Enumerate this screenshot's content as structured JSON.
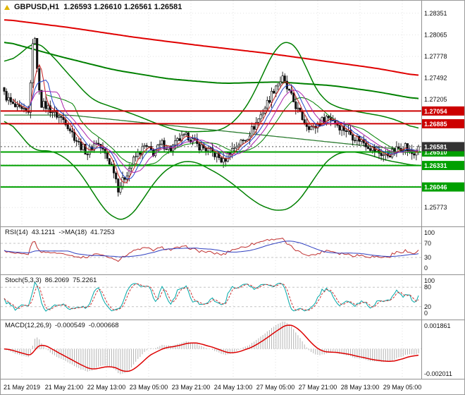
{
  "title": {
    "symbol_period": "GBPUSD,H1",
    "ohlc": "1.26593 1.26610 1.26561 1.26581"
  },
  "chart_data": {
    "type": "candlestick",
    "symbol": "GBPUSD",
    "timeframe": "H1",
    "current_ohlc": {
      "open": 1.26593,
      "high": 1.2661,
      "low": 1.26561,
      "close": 1.26581
    },
    "n_candles": 190,
    "price_range": [
      1.2556,
      1.2848
    ],
    "colors": {
      "candle": "#111111",
      "bull_fill": "#ffffff",
      "grid": "#e2e2e2",
      "separator": "#909090",
      "axis_text": "#111111"
    },
    "close_anchors": [
      [
        0,
        1.2728
      ],
      [
        4,
        1.2712
      ],
      [
        8,
        1.2705
      ],
      [
        11,
        1.2702
      ],
      [
        13,
        1.279
      ],
      [
        14,
        1.2806
      ],
      [
        15,
        1.2758
      ],
      [
        17,
        1.2715
      ],
      [
        20,
        1.271
      ],
      [
        24,
        1.27
      ],
      [
        28,
        1.2692
      ],
      [
        31,
        1.2676
      ],
      [
        34,
        1.2662
      ],
      [
        38,
        1.265
      ],
      [
        42,
        1.2665
      ],
      [
        46,
        1.2648
      ],
      [
        50,
        1.2628
      ],
      [
        52,
        1.2603
      ],
      [
        54,
        1.2612
      ],
      [
        57,
        1.263
      ],
      [
        60,
        1.2645
      ],
      [
        64,
        1.2658
      ],
      [
        68,
        1.265
      ],
      [
        72,
        1.2662
      ],
      [
        76,
        1.2655
      ],
      [
        80,
        1.2668
      ],
      [
        84,
        1.2672
      ],
      [
        88,
        1.266
      ],
      [
        92,
        1.2655
      ],
      [
        96,
        1.2648
      ],
      [
        100,
        1.2638
      ],
      [
        103,
        1.2652
      ],
      [
        106,
        1.266
      ],
      [
        110,
        1.2668
      ],
      [
        114,
        1.2685
      ],
      [
        118,
        1.2705
      ],
      [
        121,
        1.2722
      ],
      [
        124,
        1.274
      ],
      [
        127,
        1.2748
      ],
      [
        129,
        1.2735
      ],
      [
        132,
        1.2718
      ],
      [
        135,
        1.27
      ],
      [
        138,
        1.2688
      ],
      [
        141,
        1.2682
      ],
      [
        144,
        1.269
      ],
      [
        147,
        1.2698
      ],
      [
        150,
        1.2694
      ],
      [
        153,
        1.2685
      ],
      [
        156,
        1.268
      ],
      [
        159,
        1.2672
      ],
      [
        162,
        1.2668
      ],
      [
        165,
        1.2662
      ],
      [
        168,
        1.2655
      ],
      [
        171,
        1.265
      ],
      [
        174,
        1.2646
      ],
      [
        177,
        1.265
      ],
      [
        180,
        1.2656
      ],
      [
        183,
        1.266
      ],
      [
        185,
        1.265
      ],
      [
        187,
        1.2648
      ],
      [
        189,
        1.26581
      ]
    ],
    "overlays": {
      "trend_ma_red": {
        "color": "#e00000",
        "width": 2,
        "anchors": [
          [
            0,
            1.2827
          ],
          [
            30,
            1.2816
          ],
          [
            60,
            1.2803
          ],
          [
            90,
            1.2792
          ],
          [
            120,
            1.2782
          ],
          [
            150,
            1.277
          ],
          [
            170,
            1.2762
          ],
          [
            189,
            1.2752
          ]
        ]
      },
      "slow_ma_green": {
        "color": "#008000",
        "width": 2,
        "anchors": [
          [
            0,
            1.2798
          ],
          [
            25,
            1.2778
          ],
          [
            50,
            1.276
          ],
          [
            75,
            1.2748
          ],
          [
            100,
            1.2742
          ],
          [
            125,
            1.2744
          ],
          [
            150,
            1.2739
          ],
          [
            170,
            1.2731
          ],
          [
            189,
            1.2721
          ]
        ]
      },
      "bb_upper": {
        "color": "#008000",
        "width": 1.5,
        "anchors": [
          [
            0,
            1.2768
          ],
          [
            8,
            1.2782
          ],
          [
            14,
            1.28
          ],
          [
            20,
            1.2785
          ],
          [
            30,
            1.2752
          ],
          [
            40,
            1.272
          ],
          [
            50,
            1.271
          ],
          [
            60,
            1.27
          ],
          [
            70,
            1.2688
          ],
          [
            80,
            1.2678
          ],
          [
            90,
            1.2678
          ],
          [
            100,
            1.268
          ],
          [
            108,
            1.27
          ],
          [
            114,
            1.2728
          ],
          [
            120,
            1.2768
          ],
          [
            125,
            1.2795
          ],
          [
            130,
            1.28
          ],
          [
            135,
            1.2785
          ],
          [
            140,
            1.2745
          ],
          [
            145,
            1.2722
          ],
          [
            150,
            1.2712
          ],
          [
            158,
            1.2706
          ],
          [
            166,
            1.2702
          ],
          [
            174,
            1.2698
          ],
          [
            182,
            1.269
          ],
          [
            189,
            1.268
          ]
        ]
      },
      "bb_lower": {
        "color": "#008000",
        "width": 1.5,
        "anchors": [
          [
            0,
            1.2698
          ],
          [
            8,
            1.2672
          ],
          [
            14,
            1.265
          ],
          [
            20,
            1.2655
          ],
          [
            30,
            1.264
          ],
          [
            38,
            1.261
          ],
          [
            44,
            1.258
          ],
          [
            50,
            1.2562
          ],
          [
            56,
            1.256
          ],
          [
            62,
            1.2582
          ],
          [
            70,
            1.2618
          ],
          [
            78,
            1.2636
          ],
          [
            86,
            1.264
          ],
          [
            94,
            1.2628
          ],
          [
            100,
            1.2618
          ],
          [
            108,
            1.26
          ],
          [
            114,
            1.2585
          ],
          [
            120,
            1.2576
          ],
          [
            126,
            1.2572
          ],
          [
            132,
            1.2578
          ],
          [
            138,
            1.26
          ],
          [
            144,
            1.2628
          ],
          [
            150,
            1.2648
          ],
          [
            158,
            1.2652
          ],
          [
            166,
            1.2648
          ],
          [
            174,
            1.264
          ],
          [
            182,
            1.2636
          ],
          [
            189,
            1.2632
          ]
        ]
      },
      "trendline": {
        "color": "#2e7d32",
        "width": 1.3,
        "anchors": [
          [
            30,
            1.27
          ],
          [
            189,
            1.2652
          ]
        ]
      }
    },
    "computed_overlays": [
      {
        "name": "bb_middle",
        "period": 20,
        "color": "#008000",
        "width": 1,
        "layer": "back"
      },
      {
        "name": "ma_fast_red",
        "period": 5,
        "color": "#cc2222",
        "width": 1,
        "layer": "front"
      },
      {
        "name": "ma_fast_blue",
        "period": 8,
        "color": "#2244cc",
        "width": 1,
        "layer": "front"
      },
      {
        "name": "ma_fast_magenta",
        "period": 13,
        "color": "#aa22aa",
        "width": 1,
        "layer": "front"
      }
    ],
    "levels": [
      {
        "price": 1.27054,
        "label": "1.27054",
        "color": "#cc0000"
      },
      {
        "price": 1.26885,
        "label": "1.26885",
        "color": "#cc0000"
      },
      {
        "price": 1.2651,
        "label": "1.26510",
        "color": "#00a000"
      },
      {
        "price": 1.26331,
        "label": "1.26331",
        "color": "#00a000"
      },
      {
        "price": 1.26046,
        "label": "1.26046",
        "color": "#00a000"
      }
    ],
    "bid": {
      "price": 1.26581,
      "label": "1.26581",
      "box_color": "#333333"
    },
    "y_ticks": [
      {
        "price": 1.28351,
        "label": "1.28351"
      },
      {
        "price": 1.28065,
        "label": "1.28065"
      },
      {
        "price": 1.27778,
        "label": "1.27778"
      },
      {
        "price": 1.27492,
        "label": "1.27492"
      },
      {
        "price": 1.27205,
        "label": "1.27205"
      },
      {
        "price": 1.25773,
        "label": "1.25773"
      }
    ],
    "grid_prices": [
      1.28351,
      1.28065,
      1.27778,
      1.27492,
      1.27205,
      1.26919,
      1.26632,
      1.26346,
      1.26059,
      1.25773
    ],
    "x_labels": [
      "21 May 2019",
      "21 May 21:00",
      "22 May 13:00",
      "23 May 05:00",
      "23 May 21:00",
      "24 May 13:00",
      "27 May 05:00",
      "27 May 21:00",
      "28 May 13:00",
      "29 May 05:00"
    ],
    "panes": {
      "rsi": {
        "name": "RSI(14)",
        "value": "43.1211",
        "ma_label": "->MA(18)",
        "ma_value": "41.7253",
        "period": 14,
        "ma_period": 18,
        "range": [
          0,
          100
        ],
        "ticks": [
          100,
          70,
          30,
          0
        ],
        "levels": [
          70,
          30
        ],
        "line_color": "#c03030",
        "ma_color": "#3040c0"
      },
      "stoch": {
        "name": "Stoch(5,3,3)",
        "value_k": "86.2069",
        "value_d": "75.2261",
        "k_period": 5,
        "smooth": 3,
        "d_period": 3,
        "range": [
          0,
          100
        ],
        "ticks": [
          100,
          80,
          20,
          0
        ],
        "levels": [
          80,
          20
        ],
        "k_color": "#00a8a8",
        "d_color": "#cc3333"
      },
      "macd": {
        "name": "MACD(12,26,9)",
        "value_macd": "-0.000549",
        "value_signal": "-0.000668",
        "fast": 12,
        "slow": 26,
        "signal": 9,
        "range": [
          -0.002011,
          0.001861
        ],
        "ticks": [
          {
            "v": 0.001861,
            "label": "0.001861"
          },
          {
            "v": -0.002011,
            "label": "-0.002011"
          }
        ],
        "hist_color": "#b4b4b4",
        "signal_color": "#dd0000"
      }
    }
  }
}
